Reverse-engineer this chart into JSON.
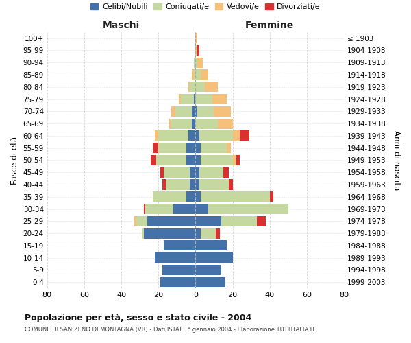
{
  "age_groups": [
    "0-4",
    "5-9",
    "10-14",
    "15-19",
    "20-24",
    "25-29",
    "30-34",
    "35-39",
    "40-44",
    "45-49",
    "50-54",
    "55-59",
    "60-64",
    "65-69",
    "70-74",
    "75-79",
    "80-84",
    "85-89",
    "90-94",
    "95-99",
    "100+"
  ],
  "birth_years": [
    "1999-2003",
    "1994-1998",
    "1989-1993",
    "1984-1988",
    "1979-1983",
    "1974-1978",
    "1969-1973",
    "1964-1968",
    "1959-1963",
    "1954-1958",
    "1949-1953",
    "1944-1948",
    "1939-1943",
    "1934-1938",
    "1929-1933",
    "1924-1928",
    "1919-1923",
    "1914-1918",
    "1909-1913",
    "1904-1908",
    "≤ 1903"
  ],
  "males": {
    "celibi": [
      19,
      18,
      22,
      17,
      28,
      26,
      12,
      5,
      3,
      3,
      5,
      5,
      4,
      2,
      2,
      1,
      0,
      0,
      0,
      0,
      0
    ],
    "coniugati": [
      0,
      0,
      0,
      0,
      1,
      6,
      15,
      18,
      13,
      14,
      16,
      15,
      16,
      11,
      9,
      7,
      3,
      1,
      1,
      0,
      0
    ],
    "vedovi": [
      0,
      0,
      0,
      0,
      0,
      1,
      0,
      0,
      0,
      0,
      0,
      0,
      2,
      1,
      2,
      1,
      1,
      1,
      0,
      0,
      0
    ],
    "divorziati": [
      0,
      0,
      0,
      0,
      0,
      0,
      1,
      0,
      2,
      2,
      3,
      3,
      0,
      0,
      0,
      0,
      0,
      0,
      0,
      0,
      0
    ]
  },
  "females": {
    "nubili": [
      16,
      14,
      20,
      17,
      3,
      14,
      7,
      3,
      2,
      2,
      3,
      3,
      2,
      0,
      1,
      0,
      0,
      0,
      0,
      0,
      0
    ],
    "coniugate": [
      0,
      0,
      0,
      0,
      8,
      19,
      43,
      37,
      16,
      13,
      17,
      14,
      18,
      12,
      9,
      9,
      5,
      3,
      1,
      0,
      0
    ],
    "vedove": [
      0,
      0,
      0,
      0,
      0,
      0,
      0,
      0,
      0,
      0,
      2,
      2,
      4,
      8,
      9,
      8,
      7,
      4,
      3,
      1,
      1
    ],
    "divorziate": [
      0,
      0,
      0,
      0,
      2,
      5,
      0,
      2,
      2,
      3,
      2,
      0,
      5,
      0,
      0,
      0,
      0,
      0,
      0,
      1,
      0
    ]
  },
  "colors": {
    "celibi": "#4472a8",
    "coniugati": "#c5d8a0",
    "vedovi": "#f5c07a",
    "divorziati": "#d93030"
  },
  "title": "Popolazione per età, sesso e stato civile - 2004",
  "subtitle": "COMUNE DI SAN ZENO DI MONTAGNA (VR) - Dati ISTAT 1° gennaio 2004 - Elaborazione TUTTITALIA.IT",
  "xlabel_left": "Maschi",
  "xlabel_right": "Femmine",
  "ylabel_left": "Fasce di età",
  "ylabel_right": "Anni di nascita",
  "xlim": 80,
  "legend_labels": [
    "Celibi/Nubili",
    "Coniugati/e",
    "Vedovi/e",
    "Divorziati/e"
  ],
  "bg_color": "#ffffff",
  "grid_color": "#cccccc"
}
